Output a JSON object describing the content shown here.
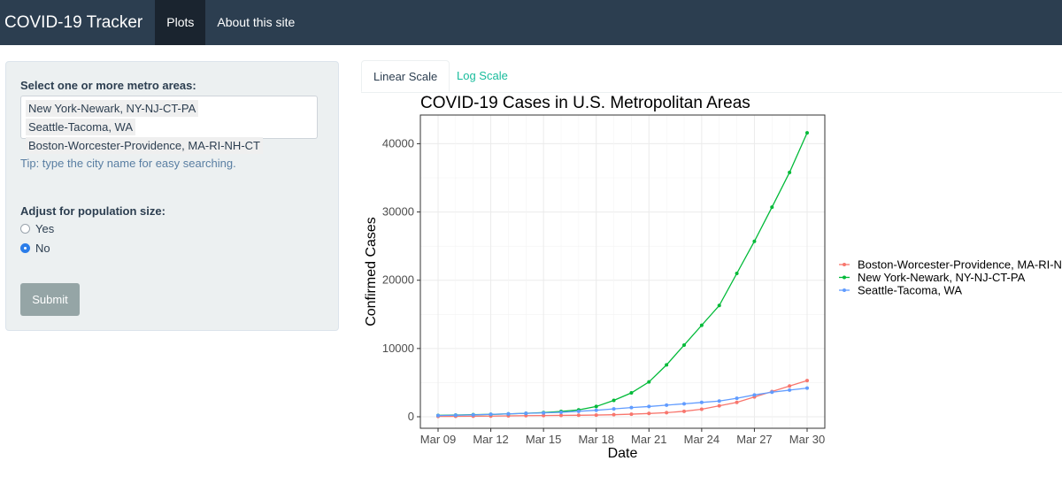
{
  "navbar": {
    "brand": "COVID-19 Tracker",
    "items": [
      {
        "label": "Plots",
        "active": true
      },
      {
        "label": "About this site",
        "active": false
      }
    ],
    "bg_color": "#2c3e50"
  },
  "sidebar": {
    "metro_label": "Select one or more metro areas:",
    "selected_metros": [
      "New York-Newark, NY-NJ-CT-PA",
      "Seattle-Tacoma, WA",
      "Boston-Worcester-Providence, MA-RI-NH-CT"
    ],
    "tip": "Tip: type the city name for easy searching.",
    "population_label": "Adjust for population size:",
    "options": [
      {
        "label": "Yes",
        "checked": false
      },
      {
        "label": "No",
        "checked": true
      }
    ],
    "submit_label": "Submit"
  },
  "tabs": [
    {
      "label": "Linear Scale",
      "active": true
    },
    {
      "label": "Log Scale",
      "active": false
    }
  ],
  "chart_data": {
    "type": "line",
    "title": "COVID-19 Cases in U.S. Metropolitan Areas",
    "xlabel": "Date",
    "ylabel": "Confirmed Cases",
    "x": [
      "Mar 09",
      "Mar 10",
      "Mar 11",
      "Mar 12",
      "Mar 13",
      "Mar 14",
      "Mar 15",
      "Mar 16",
      "Mar 17",
      "Mar 18",
      "Mar 19",
      "Mar 20",
      "Mar 21",
      "Mar 22",
      "Mar 23",
      "Mar 24",
      "Mar 25",
      "Mar 26",
      "Mar 27",
      "Mar 28",
      "Mar 29",
      "Mar 30"
    ],
    "x_ticks": [
      "Mar 09",
      "Mar 12",
      "Mar 15",
      "Mar 18",
      "Mar 21",
      "Mar 24",
      "Mar 27",
      "Mar 30"
    ],
    "ylim": [
      0,
      42000
    ],
    "y_ticks": [
      0,
      10000,
      20000,
      30000,
      40000
    ],
    "grid": true,
    "legend_position": "right",
    "series": [
      {
        "name": "Boston-Worcester-Providence, MA-RI-NH-CT",
        "color": "#f8766d",
        "values": [
          50,
          60,
          80,
          100,
          130,
          160,
          180,
          200,
          220,
          250,
          300,
          380,
          480,
          600,
          800,
          1100,
          1600,
          2100,
          2900,
          3700,
          4500,
          5300
        ]
      },
      {
        "name": "New York-Newark, NY-NJ-CT-PA",
        "color": "#00ba38",
        "values": [
          200,
          250,
          300,
          350,
          420,
          500,
          620,
          780,
          1000,
          1500,
          2400,
          3500,
          5100,
          7600,
          10500,
          13400,
          16300,
          21000,
          25700,
          30700,
          35800,
          41600
        ]
      },
      {
        "name": "Seattle-Tacoma, WA",
        "color": "#619cff",
        "values": [
          180,
          230,
          280,
          360,
          420,
          500,
          570,
          650,
          800,
          950,
          1150,
          1350,
          1500,
          1700,
          1900,
          2100,
          2300,
          2700,
          3200,
          3600,
          3900,
          4200
        ]
      }
    ]
  }
}
